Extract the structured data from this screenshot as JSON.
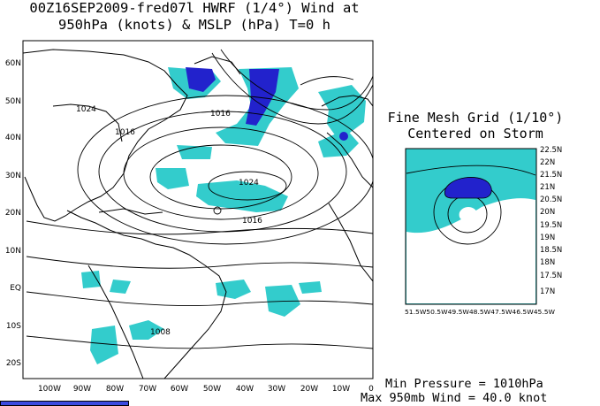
{
  "title": {
    "line1": "00Z16SEP2009-fred07l HWRF (1/4°) Wind at",
    "line2": "950hPa (knots) & MSLP (hPa) T=0 h"
  },
  "main_map": {
    "lat_labels": [
      "60N",
      "50N",
      "40N",
      "30N",
      "20N",
      "10N",
      "EQ",
      "10S",
      "20S"
    ],
    "lon_labels": [
      "100W",
      "90W",
      "80W",
      "70W",
      "60W",
      "50W",
      "40W",
      "30W",
      "20W",
      "10W",
      "0"
    ],
    "isobar_labels": [
      "1024",
      "1016",
      "1016",
      "1024",
      "1016",
      "1008"
    ],
    "colors": {
      "wind_fill": "#33cccc",
      "wind_strong": "#2222cc",
      "land": "#ffffff",
      "contour": "#000000"
    }
  },
  "inset": {
    "title_line1": "Fine Mesh Grid (1/10°)",
    "title_line2": "Centered on Storm",
    "lat_labels": [
      "22.5N",
      "22N",
      "21.5N",
      "21N",
      "20.5N",
      "20N",
      "19.5N",
      "19N",
      "18.5N",
      "18N",
      "17.5N",
      "17N"
    ],
    "lon_labels_text": "51.5W50.5W49.5W48.5W47.5W46.5W45.5W"
  },
  "stats": {
    "min_pressure": "Min Pressure = 1010hPa",
    "max_wind": "Max 950mb Wind = 40.0 knot"
  }
}
